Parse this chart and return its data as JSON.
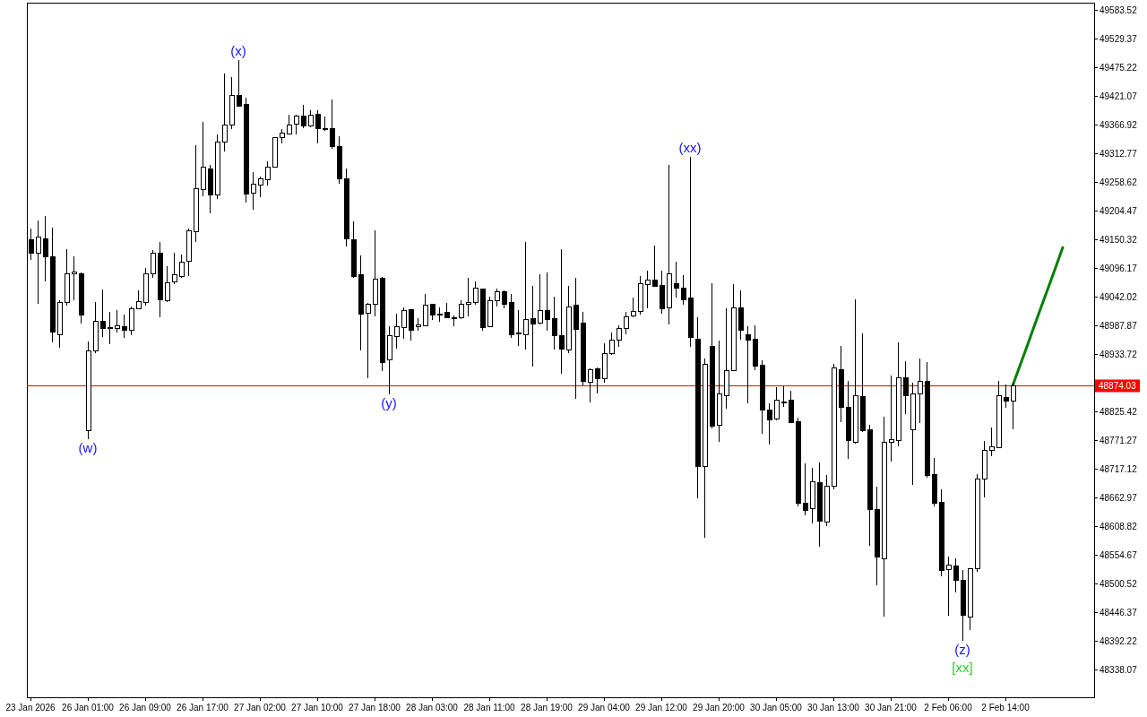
{
  "chart_data": {
    "type": "candlestick",
    "categories": [
      "23 Jan 2026",
      null,
      null,
      null,
      null,
      null,
      null,
      null,
      "26 Jan 01:00",
      null,
      null,
      null,
      null,
      null,
      null,
      null,
      "26 Jan 09:00",
      null,
      null,
      null,
      null,
      null,
      null,
      null,
      "26 Jan 17:00",
      null,
      null,
      null,
      null,
      null,
      null,
      null,
      "27 Jan 02:00",
      null,
      null,
      null,
      null,
      null,
      null,
      null,
      "27 Jan 10:00",
      null,
      null,
      null,
      null,
      null,
      null,
      null,
      "27 Jan 18:00",
      null,
      null,
      null,
      null,
      null,
      null,
      null,
      "28 Jan 03:00",
      null,
      null,
      null,
      null,
      null,
      null,
      null,
      "28 Jan 11:00",
      null,
      null,
      null,
      null,
      null,
      null,
      null,
      "28 Jan 19:00",
      null,
      null,
      null,
      null,
      null,
      null,
      null,
      "29 Jan 04:00",
      null,
      null,
      null,
      null,
      null,
      null,
      null,
      "29 Jan 12:00",
      null,
      null,
      null,
      null,
      null,
      null,
      null,
      "29 Jan 20:00",
      null,
      null,
      null,
      null,
      null,
      null,
      null,
      "30 Jan 05:00",
      null,
      null,
      null,
      null,
      null,
      null,
      null,
      "30 Jan 13:00",
      null,
      null,
      null,
      null,
      null,
      null,
      null,
      "30 Jan 21:00",
      null,
      null,
      null,
      null,
      null,
      null,
      null,
      "2 Feb 06:00",
      null,
      null,
      null,
      null,
      null,
      null,
      null,
      "2 Feb 14:00",
      null,
      null,
      null,
      null,
      null,
      null,
      null,
      null
    ],
    "ohlc": [
      [
        49149,
        49171,
        49111,
        49125
      ],
      [
        49125,
        49186,
        49029,
        49154
      ],
      [
        49152,
        49194,
        49071,
        49117
      ],
      [
        49118,
        49172,
        48956,
        48975
      ],
      [
        48971,
        49036,
        48946,
        49031
      ],
      [
        49032,
        49132,
        49026,
        49085
      ],
      [
        49085,
        49118,
        49035,
        49089
      ],
      [
        49085,
        49088,
        48991,
        49007
      ],
      [
        48789,
        48957,
        48774,
        48940
      ],
      [
        48939,
        49032,
        48935,
        48996
      ],
      [
        48996,
        49056,
        48966,
        48982
      ],
      [
        48984,
        49013,
        48953,
        48982
      ],
      [
        48982,
        49017,
        48975,
        48987
      ],
      [
        48986,
        49008,
        48965,
        48978
      ],
      [
        48979,
        49023,
        48969,
        49020
      ],
      [
        49019,
        49054,
        49018,
        49033
      ],
      [
        49031,
        49096,
        49025,
        49085
      ],
      [
        49085,
        49130,
        49078,
        49125
      ],
      [
        49125,
        49145,
        49004,
        49037
      ],
      [
        49034,
        49100,
        49032,
        49069
      ],
      [
        49070,
        49125,
        49065,
        49084
      ],
      [
        49081,
        49122,
        49078,
        49108
      ],
      [
        49109,
        49171,
        49081,
        49167
      ],
      [
        49164,
        49328,
        49145,
        49246
      ],
      [
        49244,
        49372,
        49232,
        49286
      ],
      [
        49284,
        49290,
        49200,
        49234
      ],
      [
        49234,
        49348,
        49226,
        49334
      ],
      [
        49334,
        49463,
        49317,
        49366
      ],
      [
        49366,
        49457,
        49358,
        49422
      ],
      [
        49422,
        49488,
        49400,
        49401
      ],
      [
        49405,
        49417,
        49220,
        49235
      ],
      [
        49238,
        49277,
        49207,
        49255
      ],
      [
        49252,
        49269,
        49230,
        49265
      ],
      [
        49263,
        49298,
        49252,
        49287
      ],
      [
        49286,
        49343,
        49286,
        49343
      ],
      [
        49342,
        49358,
        49332,
        49351
      ],
      [
        49350,
        49386,
        49350,
        49366
      ],
      [
        49367,
        49386,
        49348,
        49383
      ],
      [
        49383,
        49404,
        49361,
        49364
      ],
      [
        49364,
        49394,
        49362,
        49384
      ],
      [
        49387,
        49394,
        49331,
        49360
      ],
      [
        49359,
        49382,
        49355,
        49359
      ],
      [
        49360,
        49414,
        49322,
        49325
      ],
      [
        49326,
        49345,
        49255,
        49264
      ],
      [
        49265,
        49284,
        49137,
        49151
      ],
      [
        49150,
        49184,
        49078,
        49081
      ],
      [
        49084,
        49120,
        48940,
        49009
      ],
      [
        49011,
        49031,
        48889,
        49028
      ],
      [
        49028,
        49167,
        49005,
        49075
      ],
      [
        49076,
        49079,
        48902,
        48918
      ],
      [
        48923,
        48987,
        48858,
        48969
      ],
      [
        48967,
        49010,
        48944,
        48986
      ],
      [
        48984,
        49022,
        48962,
        49016
      ],
      [
        49017,
        49018,
        48959,
        48978
      ],
      [
        48986,
        49001,
        48978,
        48989
      ],
      [
        48988,
        49047,
        48987,
        49026
      ],
      [
        49028,
        49029,
        48998,
        49007
      ],
      [
        49010,
        49022,
        48995,
        49008
      ],
      [
        49012,
        49030,
        49001,
        49002
      ],
      [
        49003,
        49007,
        48987,
        49003
      ],
      [
        49002,
        49035,
        49000,
        49028
      ],
      [
        49028,
        49078,
        49005,
        49032
      ],
      [
        49031,
        49071,
        49027,
        49058
      ],
      [
        49057,
        49058,
        48978,
        48983
      ],
      [
        48986,
        49042,
        48985,
        49035
      ],
      [
        49035,
        49057,
        49023,
        49052
      ],
      [
        49052,
        49054,
        49020,
        49028
      ],
      [
        49031,
        49048,
        48964,
        48970
      ],
      [
        48974,
        49017,
        48949,
        48972
      ],
      [
        48970,
        49146,
        48943,
        48999
      ],
      [
        49000,
        49062,
        48911,
        48990
      ],
      [
        48992,
        49084,
        48989,
        49016
      ],
      [
        49016,
        49088,
        48978,
        48999
      ],
      [
        49000,
        49042,
        48942,
        48968
      ],
      [
        48969,
        49132,
        48897,
        48944
      ],
      [
        48941,
        49062,
        48935,
        49023
      ],
      [
        49026,
        49078,
        48849,
        48980
      ],
      [
        48992,
        49013,
        48874,
        48882
      ],
      [
        48880,
        48906,
        48843,
        48904
      ],
      [
        48906,
        48909,
        48860,
        48887
      ],
      [
        48888,
        48954,
        48880,
        48935
      ],
      [
        48934,
        48975,
        48933,
        48960
      ],
      [
        48960,
        48988,
        48947,
        48982
      ],
      [
        48982,
        49013,
        48971,
        49004
      ],
      [
        49005,
        49040,
        49004,
        49014
      ],
      [
        49014,
        49081,
        49008,
        49067
      ],
      [
        49065,
        49091,
        49020,
        49074
      ],
      [
        49074,
        49138,
        49061,
        49062
      ],
      [
        49063,
        49091,
        49010,
        49020
      ],
      [
        49021,
        49291,
        48990,
        49085
      ],
      [
        49067,
        49108,
        49041,
        49058
      ],
      [
        49058,
        49083,
        49027,
        49037
      ],
      [
        49040,
        49306,
        48948,
        48966
      ],
      [
        48962,
        49003,
        48661,
        48721
      ],
      [
        48721,
        48925,
        48587,
        48915
      ],
      [
        48949,
        49067,
        48794,
        48797
      ],
      [
        48800,
        48959,
        48768,
        48859
      ],
      [
        48855,
        49020,
        48831,
        48903
      ],
      [
        48903,
        49066,
        48902,
        49021
      ],
      [
        49021,
        49054,
        48961,
        48978
      ],
      [
        48971,
        48986,
        48841,
        48960
      ],
      [
        48962,
        48988,
        48903,
        48911
      ],
      [
        48913,
        48922,
        48784,
        48828
      ],
      [
        48829,
        48841,
        48763,
        48809
      ],
      [
        48812,
        48871,
        48809,
        48846
      ],
      [
        48844,
        48873,
        48834,
        48844
      ],
      [
        48846,
        48864,
        48803,
        48804
      ],
      [
        48807,
        48814,
        48647,
        48653
      ],
      [
        48653,
        48727,
        48629,
        48638
      ],
      [
        48642,
        48719,
        48614,
        48693
      ],
      [
        48691,
        48730,
        48571,
        48619
      ],
      [
        48617,
        48705,
        48609,
        48684
      ],
      [
        48684,
        48915,
        48679,
        48908
      ],
      [
        48905,
        48949,
        48806,
        48833
      ],
      [
        48834,
        48883,
        48736,
        48770
      ],
      [
        48768,
        49037,
        48765,
        48855
      ],
      [
        48854,
        48973,
        48787,
        48790
      ],
      [
        48791,
        48800,
        48572,
        48641
      ],
      [
        48641,
        48683,
        48497,
        48550
      ],
      [
        48547,
        48815,
        48438,
        48767
      ],
      [
        48767,
        48893,
        48731,
        48772
      ],
      [
        48770,
        48956,
        48760,
        48889
      ],
      [
        48889,
        48920,
        48820,
        48855
      ],
      [
        48791,
        48879,
        48687,
        48859
      ],
      [
        48859,
        48925,
        48804,
        48882
      ],
      [
        48882,
        48918,
        48700,
        48705
      ],
      [
        48706,
        48737,
        48647,
        48653
      ],
      [
        48654,
        48679,
        48515,
        48526
      ],
      [
        48527,
        48551,
        48440,
        48536
      ],
      [
        48534,
        48549,
        48484,
        48506
      ],
      [
        48507,
        48526,
        48392,
        48440
      ],
      [
        48438,
        48530,
        48413,
        48529
      ],
      [
        48529,
        48708,
        48522,
        48698
      ],
      [
        48698,
        48770,
        48663,
        48752
      ],
      [
        48752,
        48795,
        48741,
        48758
      ],
      [
        48757,
        48883,
        48756,
        48855
      ],
      [
        48852,
        48877,
        48833,
        48845
      ],
      [
        48845,
        48879,
        48792,
        48874
      ],
      null,
      null,
      null,
      null,
      null,
      null,
      null
    ],
    "series": [
      {
        "type": "line",
        "color": "#008000",
        "values": [
          null,
          null,
          null,
          null,
          null,
          null,
          null,
          null,
          null,
          null,
          null,
          null,
          null,
          null,
          null,
          null,
          null,
          null,
          null,
          null,
          null,
          null,
          null,
          null,
          null,
          null,
          null,
          null,
          null,
          null,
          null,
          null,
          null,
          null,
          null,
          null,
          null,
          null,
          null,
          null,
          null,
          null,
          null,
          null,
          null,
          null,
          null,
          null,
          null,
          null,
          null,
          null,
          null,
          null,
          null,
          null,
          null,
          null,
          null,
          null,
          null,
          null,
          null,
          null,
          null,
          null,
          null,
          null,
          null,
          null,
          null,
          null,
          null,
          null,
          null,
          null,
          null,
          null,
          null,
          null,
          null,
          null,
          null,
          null,
          null,
          null,
          null,
          null,
          null,
          null,
          null,
          null,
          null,
          null,
          null,
          null,
          null,
          null,
          null,
          null,
          null,
          null,
          null,
          null,
          null,
          null,
          null,
          null,
          null,
          null,
          null,
          null,
          null,
          null,
          null,
          null,
          null,
          null,
          null,
          null,
          null,
          null,
          null,
          null,
          null,
          null,
          null,
          null,
          null,
          null,
          null,
          null,
          null,
          null,
          null,
          null,
          null,
          48874,
          48911,
          48948,
          48986,
          49023,
          49060,
          49097,
          49135
        ]
      }
    ],
    "ylim": [
      48286,
      49597
    ],
    "yticks": [
      49583.52,
      49529.37,
      49475.22,
      49421.07,
      49366.92,
      49312.77,
      49258.62,
      49204.47,
      49150.32,
      49096.17,
      49042.02,
      48987.87,
      48933.72,
      48825.42,
      48771.27,
      48717.12,
      48662.97,
      48608.82,
      48554.67,
      48500.52,
      48446.37,
      48392.22,
      48338.07
    ],
    "ref_lines": [
      {
        "axis": "y",
        "value": 48874.03,
        "label": "48874.03",
        "color": "#ff0000"
      }
    ],
    "annotations": [
      {
        "text": "(w)",
        "x": "26 Jan 01:00",
        "y": 48774
      },
      {
        "text": "(x)",
        "y": 49488
      },
      {
        "text": "(y)",
        "y": 48858
      },
      {
        "text": "(xx)",
        "y": 49306
      },
      {
        "text": "(z)",
        "y": 48392
      },
      {
        "text": "[xx]",
        "y": 48392
      }
    ]
  }
}
